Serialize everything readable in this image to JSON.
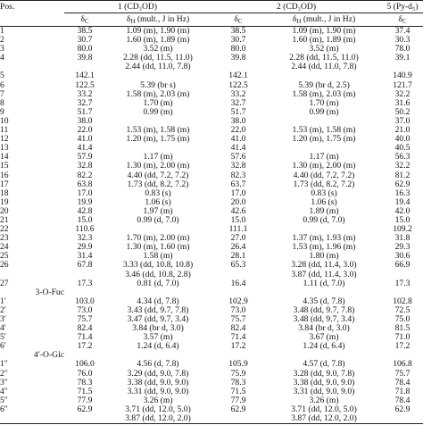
{
  "table": {
    "pos_label": "Pos.",
    "groups": [
      "1 (CD₃OD)",
      "2 (CD₃OD)",
      "5 (Py-d₅)"
    ],
    "subheaders": [
      {
        "symbol": "δ",
        "nucleus": "C"
      },
      {
        "symbol": "δ",
        "nucleus": "H",
        "note": "(mult., J in Hz)"
      },
      {
        "symbol": "δ",
        "nucleus": "C"
      },
      {
        "symbol": "δ",
        "nucleus": "H",
        "note": "(mult., J in Hz)"
      },
      {
        "symbol": "δ",
        "nucleus": "C"
      }
    ],
    "rows": [
      [
        "1",
        "38.5",
        "1.09 (m), 1.90 (m)",
        "38.5",
        "1.09 (m), 1.90 (m)",
        "37.4"
      ],
      [
        "2",
        "30.7",
        "1.60 (m), 1.89 (m)",
        "30.7",
        "1.60 (m), 1.89 (m)",
        "30.3"
      ],
      [
        "3",
        "80.0",
        "3.52 (m)",
        "80.0",
        "3.52 (m)",
        "78.0"
      ],
      [
        "4",
        "39.8",
        "2.28 (dd, 11.5, 11.0)",
        "39.8",
        "2.28 (dd, 11.5, 11.0)",
        "39.1"
      ],
      [
        null,
        null,
        "2.44 (dd, 11.0, 7.8)",
        null,
        "2.44 (dd, 11.0, 7.8)",
        null
      ],
      [
        "5",
        "142.1",
        null,
        "142.1",
        null,
        "140.9"
      ],
      [
        "6",
        "122.5",
        "5.39 (br s)",
        "122.5",
        "5.39 (br d, 2.5)",
        "121.7"
      ],
      [
        "7",
        "33.2",
        "1.58 (m), 2.03 (m)",
        "33.2",
        "1.58 (m), 2.03 (m)",
        "32.2"
      ],
      [
        "8",
        "32.7",
        "1.70 (m)",
        "32.7",
        "1.70 (m)",
        "31.6"
      ],
      [
        "9",
        "51.7",
        "0.99 (m)",
        "51.7",
        "0.99 (m)",
        "50.2"
      ],
      [
        "10",
        "38.0",
        null,
        "38.0",
        null,
        "37.0"
      ],
      [
        "11",
        "22.0",
        "1.53 (m), 1.58 (m)",
        "22.0",
        "1.53 (m), 1.58 (m)",
        "21.0"
      ],
      [
        "12",
        "41.0",
        "1.20 (m), 1.75 (m)",
        "41.0",
        "1.20 (m), 1.75 (m)",
        "40.0"
      ],
      [
        "13",
        "41.4",
        null,
        "41.4",
        null,
        "40.5"
      ],
      [
        "14",
        "57.9",
        "1.17 (m)",
        "57.6",
        "1.17 (m)",
        "56.3"
      ],
      [
        "15",
        "32.8",
        "1.30 (m), 2.00 (m)",
        "32.8",
        "1.30 (m), 2.00 (m)",
        "32.2"
      ],
      [
        "16",
        "82.2",
        "4.40 (dd, 7.2, 7.2)",
        "82.3",
        "4.40 (dd, 7.2, 7.2)",
        "81.2"
      ],
      [
        "17",
        "63.8",
        "1.73 (dd, 8.2, 7.2)",
        "63.7",
        "1.73 (dd, 8.2, 7.2)",
        "62.9"
      ],
      [
        "18",
        "17.0",
        "0.83 (s)",
        "17.0",
        "0.83 (s)",
        "16.3"
      ],
      [
        "19",
        "19.9",
        "1.06 (s)",
        "20.0",
        "1.06 (s)",
        "19.4"
      ],
      [
        "20",
        "42.8",
        "1.97 (m)",
        "42.6",
        "1.89 (m)",
        "42.0"
      ],
      [
        "21",
        "15.0",
        "0.99 (d, 7.0)",
        "15.0",
        "0.99 (d, 7.0)",
        "15.0"
      ],
      [
        "22",
        "110.6",
        null,
        "111.1",
        null,
        "109.2"
      ],
      [
        "23",
        "32.3",
        "1.70 (m), 2.00 (m)",
        "27.0",
        "1.37 (m), 1.93 (m)",
        "31.8"
      ],
      [
        "24",
        "29.9",
        "1.30 (m), 1.60 (m)",
        "26.4",
        "1.53 (m), 1.96 (m)",
        "29.3"
      ],
      [
        "25",
        "31.4",
        "1.58 (m)",
        "28.1",
        "1.80 (m)",
        "30.6"
      ],
      [
        "26",
        "67.8",
        "3.33 (dd, 10.8, 10.8)",
        "65.3",
        "3.28 (dd, 11.4, 3.0)",
        "66.9"
      ],
      [
        null,
        null,
        "3.46 (dd, 10.8, 2.8)",
        null,
        "3.87 (dd, 11.4, 3.0)",
        null
      ],
      [
        "27",
        "17.3",
        "0.81 (d, 7.0)",
        "16.4",
        "1.11 (d, 7.0)",
        "17.3"
      ],
      {
        "section": "3-O-Fuc"
      },
      [
        "1′",
        "103.0",
        "4.34 (d, 7.8)",
        "102.9",
        "4.35 (d, 7.8)",
        "102.8"
      ],
      [
        "2′",
        "73.0",
        "3.43 (dd, 9.7, 7.8)",
        "73.0",
        "3.48 (dd, 9.7, 7.8)",
        "72.5"
      ],
      [
        "3′",
        "75.7",
        "3.47 (dd, 9.7, 3.4)",
        "75.7",
        "3.48 (dd, 9.7, 3.4)",
        "75.0"
      ],
      [
        "4′",
        "82.4",
        "3.84 (br d, 3.0)",
        "82.4",
        "3.84 (br d, 3.0)",
        "81.5"
      ],
      [
        "5′",
        "71.4",
        "3.57 (m)",
        "71.4",
        "3.67 (m)",
        "71.0"
      ],
      [
        "6′",
        "17.2",
        "1.24 (d, 6.4)",
        "17.2",
        "1.24 (d, 6.4)",
        "17.2"
      ],
      {
        "section": "4′-O-Glc"
      },
      [
        "1″",
        "106.0",
        "4.56 (d, 7.8)",
        "105.9",
        "4.57 (d, 7.8)",
        "106.8"
      ],
      [
        "2″",
        "76.0",
        "3.29 (dd, 9.0, 7.8)",
        "75.9",
        "3.28 (dd, 9.0, 7.8)",
        "75.7"
      ],
      [
        "3″",
        "78.3",
        "3.38 (dd, 9.0, 9.0)",
        "78.3",
        "3.38 (dd, 9.0, 9.0)",
        "78.4"
      ],
      [
        "4″",
        "71.5",
        "3.31 (dd, 9.0, 9.0)",
        "71.5",
        "3.31 (dd, 9.0, 9.0)",
        "71.8"
      ],
      [
        "5″",
        "77.9",
        "3.26 (m)",
        "77.9",
        "3.26 (m)",
        "78.4"
      ],
      [
        "6″",
        "62.9",
        "3.71 (dd, 12.0, 5.0)",
        "62.9",
        "3.71 (dd, 12.0, 5.0)",
        "62.9"
      ],
      [
        null,
        null,
        "3.87 (dd, 12.0, 2.0)",
        null,
        "3.87 (dd, 12.0, 2.0)",
        null
      ]
    ]
  }
}
